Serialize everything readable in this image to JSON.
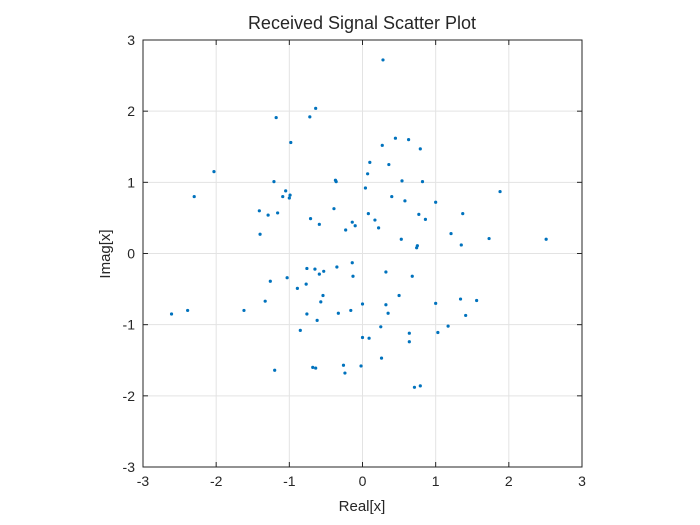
{
  "chart_data": {
    "type": "scatter",
    "title": "Received Signal Scatter Plot",
    "xlabel": "Real[x]",
    "ylabel": "Imag[x]",
    "xlim": [
      -3,
      3
    ],
    "ylim": [
      -3,
      3
    ],
    "xticks": [
      "-3",
      "-2",
      "-1",
      "0",
      "1",
      "2",
      "3"
    ],
    "yticks": [
      "-3",
      "-2",
      "-1",
      "0",
      "1",
      "2",
      "3"
    ],
    "grid": true,
    "legend": "none",
    "marker_color": "#0072BD",
    "points": [
      [
        0.28,
        2.72
      ],
      [
        -0.64,
        2.04
      ],
      [
        -0.72,
        1.92
      ],
      [
        -1.18,
        1.91
      ],
      [
        -0.98,
        1.56
      ],
      [
        -2.03,
        1.15
      ],
      [
        -2.3,
        0.8
      ],
      [
        0.45,
        1.62
      ],
      [
        0.63,
        1.6
      ],
      [
        0.27,
        1.52
      ],
      [
        0.79,
        1.47
      ],
      [
        0.1,
        1.28
      ],
      [
        0.36,
        1.25
      ],
      [
        0.07,
        1.12
      ],
      [
        -1.21,
        1.01
      ],
      [
        -0.37,
        1.03
      ],
      [
        -0.36,
        1.01
      ],
      [
        0.54,
        1.02
      ],
      [
        0.82,
        1.01
      ],
      [
        -1.05,
        0.88
      ],
      [
        -0.99,
        0.82
      ],
      [
        -1.0,
        0.78
      ],
      [
        -1.09,
        0.8
      ],
      [
        0.04,
        0.92
      ],
      [
        0.4,
        0.8
      ],
      [
        1.0,
        0.72
      ],
      [
        0.58,
        0.74
      ],
      [
        1.88,
        0.87
      ],
      [
        -0.39,
        0.63
      ],
      [
        -1.41,
        0.6
      ],
      [
        -1.16,
        0.57
      ],
      [
        -1.29,
        0.54
      ],
      [
        -0.71,
        0.49
      ],
      [
        0.08,
        0.56
      ],
      [
        0.17,
        0.47
      ],
      [
        0.77,
        0.55
      ],
      [
        0.86,
        0.48
      ],
      [
        1.37,
        0.56
      ],
      [
        -0.59,
        0.41
      ],
      [
        -0.14,
        0.44
      ],
      [
        -0.1,
        0.39
      ],
      [
        -0.23,
        0.33
      ],
      [
        0.22,
        0.36
      ],
      [
        1.21,
        0.28
      ],
      [
        -1.4,
        0.27
      ],
      [
        0.53,
        0.2
      ],
      [
        1.73,
        0.21
      ],
      [
        2.51,
        0.2
      ],
      [
        0.74,
        0.08
      ],
      [
        0.75,
        0.11
      ],
      [
        1.35,
        0.12
      ],
      [
        -0.14,
        -0.13
      ],
      [
        -0.35,
        -0.19
      ],
      [
        -0.76,
        -0.21
      ],
      [
        -0.65,
        -0.22
      ],
      [
        -0.53,
        -0.25
      ],
      [
        -0.59,
        -0.29
      ],
      [
        -0.13,
        -0.32
      ],
      [
        -1.03,
        -0.34
      ],
      [
        -1.26,
        -0.39
      ],
      [
        0.32,
        -0.26
      ],
      [
        0.68,
        -0.32
      ],
      [
        -0.77,
        -0.43
      ],
      [
        -0.89,
        -0.49
      ],
      [
        -0.54,
        -0.59
      ],
      [
        -1.33,
        -0.67
      ],
      [
        -0.57,
        -0.68
      ],
      [
        0.0,
        -0.71
      ],
      [
        0.5,
        -0.59
      ],
      [
        1.0,
        -0.7
      ],
      [
        1.34,
        -0.64
      ],
      [
        1.56,
        -0.66
      ],
      [
        -2.61,
        -0.85
      ],
      [
        -2.39,
        -0.8
      ],
      [
        -1.62,
        -0.8
      ],
      [
        -0.76,
        -0.85
      ],
      [
        -0.33,
        -0.84
      ],
      [
        -0.16,
        -0.8
      ],
      [
        0.32,
        -0.72
      ],
      [
        0.35,
        -0.84
      ],
      [
        1.41,
        -0.87
      ],
      [
        -0.62,
        -0.94
      ],
      [
        -0.85,
        -1.08
      ],
      [
        0.25,
        -1.03
      ],
      [
        1.17,
        -1.02
      ],
      [
        1.03,
        -1.11
      ],
      [
        0.64,
        -1.12
      ],
      [
        0.0,
        -1.18
      ],
      [
        0.09,
        -1.19
      ],
      [
        0.64,
        -1.24
      ],
      [
        0.26,
        -1.47
      ],
      [
        -0.02,
        -1.58
      ],
      [
        -0.26,
        -1.57
      ],
      [
        -0.68,
        -1.6
      ],
      [
        -0.64,
        -1.61
      ],
      [
        -0.24,
        -1.68
      ],
      [
        -1.2,
        -1.64
      ],
      [
        0.71,
        -1.88
      ],
      [
        0.79,
        -1.86
      ]
    ]
  }
}
